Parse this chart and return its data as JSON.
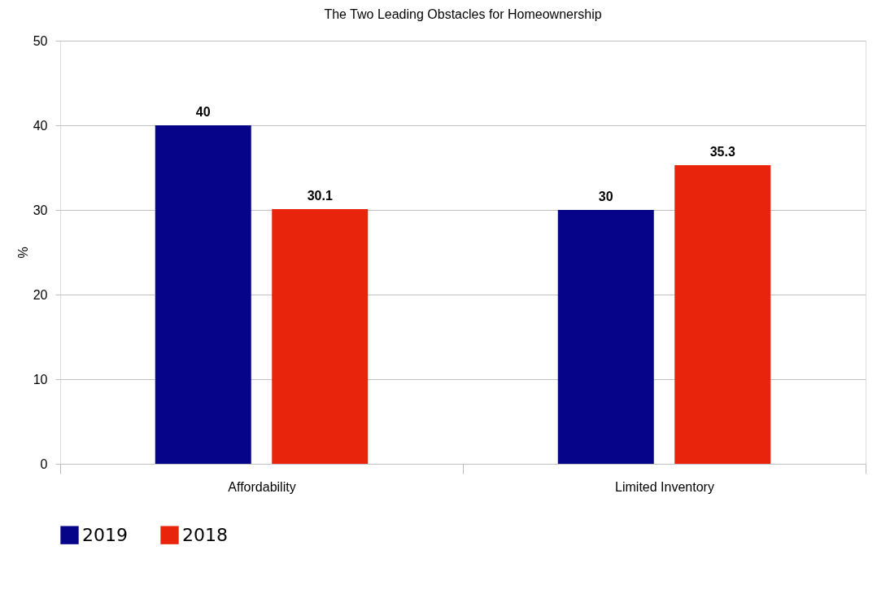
{
  "chart_data": {
    "type": "bar",
    "title": "The Two Leading Obstacles for Homeownership",
    "ylabel": "%",
    "categories": [
      "Affordability",
      "Limited Inventory"
    ],
    "series": [
      {
        "name": "2019",
        "color": "#06058a",
        "values": [
          40,
          30
        ]
      },
      {
        "name": "2018",
        "color": "#e8250c",
        "values": [
          30.1,
          35.3
        ]
      }
    ],
    "ylim": [
      0,
      50
    ],
    "yticks": [
      0,
      10,
      20,
      30,
      40,
      50
    ],
    "grid": "y",
    "legend": "bottom",
    "data_labels": true
  }
}
